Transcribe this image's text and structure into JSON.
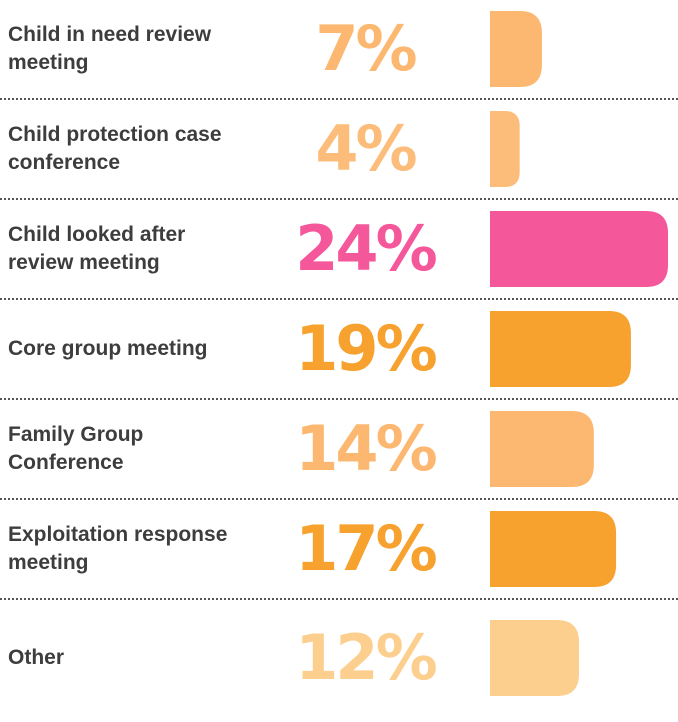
{
  "chart_data": {
    "type": "bar",
    "orientation": "horizontal",
    "categories": [
      "Child in need review meeting",
      "Child protection case conference",
      "Child looked after review meeting",
      "Core group meeting",
      "Family Group Conference",
      "Exploitation response meeting",
      "Other"
    ],
    "values": [
      7,
      4,
      24,
      19,
      14,
      17,
      12
    ],
    "value_labels": [
      "7%",
      "4%",
      "24%",
      "19%",
      "14%",
      "17%",
      "12%"
    ],
    "colors": [
      "#fcb870",
      "#fcbd7a",
      "#f5579b",
      "#f7a12e",
      "#fcb870",
      "#f7a12e",
      "#fdcf8f"
    ]
  }
}
